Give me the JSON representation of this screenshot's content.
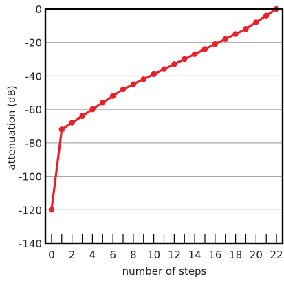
{
  "chart_data": {
    "type": "line",
    "title": "",
    "xlabel": "number of steps",
    "ylabel": "attenuation (dB)",
    "xlim": [
      -0.6,
      22.6
    ],
    "ylim": [
      -140,
      0
    ],
    "xticks": [
      0,
      2,
      4,
      6,
      8,
      10,
      12,
      14,
      16,
      18,
      20,
      22
    ],
    "yticks": [
      0,
      -20,
      -40,
      -60,
      -80,
      -100,
      -120,
      -140
    ],
    "grid": "horizontal",
    "legend": "none",
    "x": [
      0,
      1,
      2,
      3,
      4,
      5,
      6,
      7,
      8,
      9,
      10,
      11,
      12,
      13,
      14,
      15,
      16,
      17,
      18,
      19,
      20,
      21,
      22
    ],
    "series": [
      {
        "values": [
          -120,
          -72,
          -68,
          -64,
          -60,
          -56,
          -52,
          -48,
          -45,
          -42,
          -39,
          -36,
          -33,
          -30,
          -27,
          -24,
          -21,
          -18,
          -15,
          -12,
          -8,
          -4,
          0
        ]
      }
    ],
    "colors": {
      "series": "#e8202a",
      "axis": "#000000",
      "grid": "#999999"
    }
  }
}
